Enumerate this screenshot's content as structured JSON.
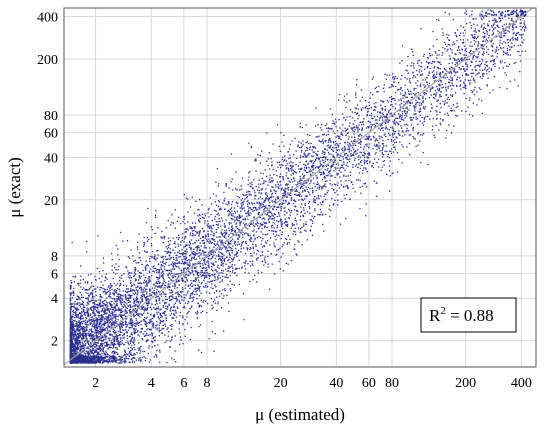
{
  "chart_data": {
    "type": "scatter",
    "xlabel": "μ (estimated)",
    "ylabel": "μ (exact)",
    "x_scale": "log",
    "y_scale": "log",
    "xlim": [
      1.35,
      480
    ],
    "ylim": [
      1.3,
      460
    ],
    "x_ticks": [
      2,
      4,
      6,
      8,
      20,
      40,
      60,
      80,
      200,
      400
    ],
    "x_tick_labels": [
      "2",
      "4",
      "6",
      "8",
      "20",
      "40",
      "60",
      "80",
      "200",
      "400"
    ],
    "y_ticks": [
      2,
      4,
      6,
      8,
      20,
      40,
      60,
      80,
      200,
      400
    ],
    "y_tick_labels": [
      "2",
      "4",
      "6",
      "8",
      "20",
      "40",
      "60",
      "80",
      "200",
      "400"
    ],
    "grid": true,
    "reference_line": {
      "slope": 1,
      "intercept": 0,
      "description": "y = x"
    },
    "annotation": {
      "base": "R",
      "sup": "2",
      "rest": " = 0.88"
    },
    "r_squared": 0.88,
    "point_cloud": {
      "x_range": [
        1.45,
        420
      ],
      "y_range": [
        1.4,
        450
      ],
      "density": "very dense near low values, sparse above 100"
    },
    "colors": {
      "points": "#2b2f8f",
      "fit_line": "#a9a9a9",
      "grid": "#d9d9d9"
    }
  }
}
